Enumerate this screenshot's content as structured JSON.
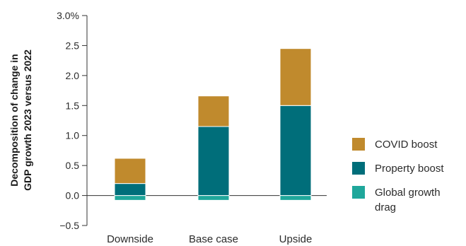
{
  "chart_data": {
    "type": "bar",
    "stacked": true,
    "categories": [
      "Downside",
      "Base case",
      "Upside"
    ],
    "series": [
      {
        "name": "Global growth drag",
        "values": [
          -0.08,
          -0.08,
          -0.08
        ],
        "color": "#1fa79b"
      },
      {
        "name": "Property boost",
        "values": [
          0.2,
          1.15,
          1.5
        ],
        "color": "#006e7a"
      },
      {
        "name": "COVID boost",
        "values": [
          0.42,
          0.51,
          0.95
        ],
        "color": "#c08a2d"
      }
    ],
    "ylabel_line1": "Decomposition of change in",
    "ylabel_line2": "GDP growth 2023 versus 2022",
    "ylim": [
      -0.5,
      3.0
    ],
    "yticks": [
      -0.5,
      0.0,
      0.5,
      1.0,
      1.5,
      2.0,
      2.5,
      3.0
    ],
    "ytick_labels": [
      "−0.5",
      "0.0",
      "0.5",
      "1.0",
      "1.5",
      "2.0",
      "2.5",
      "3.0%"
    ],
    "legend_position": "right",
    "grid": false
  },
  "legend": {
    "items": [
      {
        "label": "COVID boost",
        "color": "#c08a2d"
      },
      {
        "label": "Property boost",
        "color": "#006e7a"
      },
      {
        "label": "Global growth drag",
        "color": "#1fa79b"
      }
    ]
  }
}
